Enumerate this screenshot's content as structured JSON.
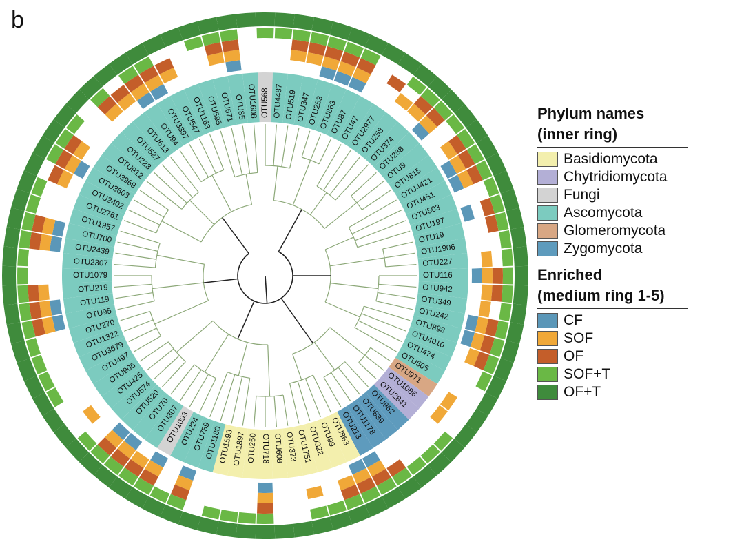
{
  "panel_label": "b",
  "legend": {
    "phylum_title_line1": "Phylum names",
    "phylum_title_line2": "(inner ring)",
    "enriched_title_line1": "Enriched",
    "enriched_title_line2": "(medium ring 1-5)",
    "phyla": [
      {
        "name": "Basidiomycota",
        "color": "#f3efad"
      },
      {
        "name": "Chytridiomycota",
        "color": "#b3afd6"
      },
      {
        "name": "Fungi",
        "color": "#d3d3d3"
      },
      {
        "name": "Ascomycota",
        "color": "#7ccbbf"
      },
      {
        "name": "Glomeromycota",
        "color": "#d8a784"
      },
      {
        "name": "Zygomycota",
        "color": "#5e9bbd"
      }
    ],
    "enriched": [
      {
        "name": "CF",
        "color": "#5b97b8"
      },
      {
        "name": "SOF",
        "color": "#f0a838"
      },
      {
        "name": "OF",
        "color": "#c45e2a"
      },
      {
        "name": "SOF+T",
        "color": "#6ab845"
      },
      {
        "name": "OF+T",
        "color": "#3f8b3c"
      }
    ]
  },
  "otus": [
    {
      "name": "OTU568",
      "phylum": "Fungi",
      "rings": [
        0,
        0,
        0,
        1,
        1
      ]
    },
    {
      "name": "OTU4487",
      "phylum": "Ascomycota",
      "rings": [
        0,
        0,
        0,
        1,
        1
      ]
    },
    {
      "name": "OTU519",
      "phylum": "Ascomycota",
      "rings": [
        0,
        1,
        1,
        1,
        1
      ]
    },
    {
      "name": "OTU347",
      "phylum": "Ascomycota",
      "rings": [
        0,
        1,
        1,
        1,
        1
      ]
    },
    {
      "name": "OTU253",
      "phylum": "Ascomycota",
      "rings": [
        1,
        1,
        1,
        1,
        1
      ]
    },
    {
      "name": "OTU863",
      "phylum": "Ascomycota",
      "rings": [
        1,
        1,
        1,
        1,
        1
      ]
    },
    {
      "name": "OTU87",
      "phylum": "Ascomycota",
      "rings": [
        1,
        1,
        1,
        1,
        1
      ]
    },
    {
      "name": "OTU47",
      "phylum": "Ascomycota",
      "rings": [
        0,
        0,
        0,
        0,
        1
      ]
    },
    {
      "name": "OTU2977",
      "phylum": "Ascomycota",
      "rings": [
        0,
        0,
        1,
        0,
        1
      ]
    },
    {
      "name": "OTU258",
      "phylum": "Ascomycota",
      "rings": [
        0,
        1,
        0,
        1,
        1
      ]
    },
    {
      "name": "OTU374",
      "phylum": "Ascomycota",
      "rings": [
        0,
        1,
        1,
        1,
        1
      ]
    },
    {
      "name": "OTU288",
      "phylum": "Ascomycota",
      "rings": [
        1,
        1,
        1,
        1,
        1
      ]
    },
    {
      "name": "OTU9",
      "phylum": "Ascomycota",
      "rings": [
        0,
        0,
        0,
        1,
        1
      ]
    },
    {
      "name": "OTU815",
      "phylum": "Ascomycota",
      "rings": [
        0,
        1,
        1,
        1,
        1
      ]
    },
    {
      "name": "OTU4421",
      "phylum": "Ascomycota",
      "rings": [
        1,
        1,
        1,
        1,
        1
      ]
    },
    {
      "name": "OTU451",
      "phylum": "Ascomycota",
      "rings": [
        1,
        1,
        1,
        1,
        1
      ]
    },
    {
      "name": "OTU503",
      "phylum": "Ascomycota",
      "rings": [
        0,
        0,
        0,
        1,
        1
      ]
    },
    {
      "name": "OTU197",
      "phylum": "Ascomycota",
      "rings": [
        1,
        0,
        1,
        1,
        1
      ]
    },
    {
      "name": "OTU19",
      "phylum": "Ascomycota",
      "rings": [
        0,
        0,
        1,
        1,
        1
      ]
    },
    {
      "name": "OTU1906",
      "phylum": "Ascomycota",
      "rings": [
        0,
        0,
        0,
        1,
        1
      ]
    },
    {
      "name": "OTU227",
      "phylum": "Ascomycota",
      "rings": [
        0,
        1,
        0,
        1,
        1
      ]
    },
    {
      "name": "OTU116",
      "phylum": "Ascomycota",
      "rings": [
        1,
        1,
        1,
        1,
        1
      ]
    },
    {
      "name": "OTU942",
      "phylum": "Ascomycota",
      "rings": [
        0,
        1,
        1,
        1,
        1
      ]
    },
    {
      "name": "OTU349",
      "phylum": "Ascomycota",
      "rings": [
        0,
        1,
        0,
        1,
        1
      ]
    },
    {
      "name": "OTU242",
      "phylum": "Ascomycota",
      "rings": [
        1,
        1,
        1,
        1,
        1
      ]
    },
    {
      "name": "OTU898",
      "phylum": "Ascomycota",
      "rings": [
        1,
        1,
        1,
        1,
        1
      ]
    },
    {
      "name": "OTU4010",
      "phylum": "Ascomycota",
      "rings": [
        0,
        1,
        1,
        1,
        1
      ]
    },
    {
      "name": "OTU474",
      "phylum": "Ascomycota",
      "rings": [
        0,
        0,
        0,
        1,
        1
      ]
    },
    {
      "name": "OTU505",
      "phylum": "Ascomycota",
      "rings": [
        0,
        0,
        0,
        0,
        1
      ]
    },
    {
      "name": "OTU971",
      "phylum": "Glomeromycota",
      "rings": [
        0,
        1,
        0,
        0,
        1
      ]
    },
    {
      "name": "OTU1086",
      "phylum": "Chytridiomycota",
      "rings": [
        0,
        1,
        0,
        0,
        1
      ]
    },
    {
      "name": "OTU2841",
      "phylum": "Chytridiomycota",
      "rings": [
        0,
        0,
        0,
        1,
        1
      ]
    },
    {
      "name": "OTU962",
      "phylum": "Zygomycota",
      "rings": [
        0,
        0,
        0,
        1,
        1
      ]
    },
    {
      "name": "OTU839",
      "phylum": "Zygomycota",
      "rings": [
        0,
        0,
        0,
        1,
        1
      ]
    },
    {
      "name": "OTU1178",
      "phylum": "Zygomycota",
      "rings": [
        0,
        0,
        1,
        1,
        1
      ]
    },
    {
      "name": "OTU213",
      "phylum": "Zygomycota",
      "rings": [
        1,
        1,
        1,
        1,
        1
      ]
    },
    {
      "name": "OTU863",
      "phylum": "Basidiomycota",
      "rings": [
        1,
        1,
        1,
        1,
        1
      ]
    },
    {
      "name": "OTU99",
      "phylum": "Basidiomycota",
      "rings": [
        0,
        1,
        1,
        1,
        1
      ]
    },
    {
      "name": "OTU322",
      "phylum": "Basidiomycota",
      "rings": [
        0,
        0,
        0,
        1,
        1
      ]
    },
    {
      "name": "OTU1751",
      "phylum": "Basidiomycota",
      "rings": [
        0,
        1,
        0,
        1,
        1
      ]
    },
    {
      "name": "OTU373",
      "phylum": "Basidiomycota",
      "rings": [
        0,
        0,
        0,
        0,
        1
      ]
    },
    {
      "name": "OTU608",
      "phylum": "Basidiomycota",
      "rings": [
        0,
        0,
        0,
        0,
        1
      ]
    },
    {
      "name": "OTU718",
      "phylum": "Basidiomycota",
      "rings": [
        1,
        1,
        1,
        1,
        1
      ]
    },
    {
      "name": "OTU250",
      "phylum": "Basidiomycota",
      "rings": [
        0,
        0,
        0,
        1,
        1
      ]
    },
    {
      "name": "OTU1897",
      "phylum": "Basidiomycota",
      "rings": [
        0,
        0,
        0,
        1,
        1
      ]
    },
    {
      "name": "OTU1593",
      "phylum": "Basidiomycota",
      "rings": [
        0,
        0,
        0,
        1,
        1
      ]
    },
    {
      "name": "OTU1180",
      "phylum": "Ascomycota",
      "rings": [
        0,
        0,
        0,
        0,
        1
      ]
    },
    {
      "name": "OTU759",
      "phylum": "Ascomycota",
      "rings": [
        1,
        1,
        1,
        1,
        1
      ]
    },
    {
      "name": "OTU224",
      "phylum": "Ascomycota",
      "rings": [
        0,
        0,
        0,
        1,
        1
      ]
    },
    {
      "name": "OTU1093",
      "phylum": "Fungi",
      "rings": [
        1,
        1,
        1,
        1,
        1
      ]
    },
    {
      "name": "OTU307",
      "phylum": "Ascomycota",
      "rings": [
        0,
        1,
        1,
        1,
        1
      ]
    },
    {
      "name": "OTU70",
      "phylum": "Ascomycota",
      "rings": [
        1,
        1,
        1,
        1,
        1
      ]
    },
    {
      "name": "OTU520",
      "phylum": "Ascomycota",
      "rings": [
        1,
        1,
        1,
        1,
        1
      ]
    },
    {
      "name": "OTU574",
      "phylum": "Ascomycota",
      "rings": [
        0,
        0,
        0,
        1,
        1
      ]
    },
    {
      "name": "OTU425",
      "phylum": "Ascomycota",
      "rings": [
        0,
        1,
        0,
        0,
        1
      ]
    },
    {
      "name": "OTU906",
      "phylum": "Ascomycota",
      "rings": [
        0,
        0,
        0,
        0,
        1
      ]
    },
    {
      "name": "OTU497",
      "phylum": "Ascomycota",
      "rings": [
        0,
        0,
        0,
        1,
        1
      ]
    },
    {
      "name": "OTU3679",
      "phylum": "Ascomycota",
      "rings": [
        0,
        0,
        0,
        1,
        1
      ]
    },
    {
      "name": "OTU1322",
      "phylum": "Ascomycota",
      "rings": [
        0,
        0,
        0,
        1,
        1
      ]
    },
    {
      "name": "OTU270",
      "phylum": "Ascomycota",
      "rings": [
        0,
        0,
        0,
        1,
        1
      ]
    },
    {
      "name": "OTU95",
      "phylum": "Ascomycota",
      "rings": [
        1,
        1,
        1,
        1,
        1
      ]
    },
    {
      "name": "OTU119",
      "phylum": "Ascomycota",
      "rings": [
        1,
        1,
        1,
        1,
        1
      ]
    },
    {
      "name": "OTU219",
      "phylum": "Ascomycota",
      "rings": [
        0,
        1,
        1,
        1,
        1
      ]
    },
    {
      "name": "OTU1079",
      "phylum": "Ascomycota",
      "rings": [
        0,
        0,
        0,
        1,
        1
      ]
    },
    {
      "name": "OTU2307",
      "phylum": "Ascomycota",
      "rings": [
        0,
        0,
        0,
        1,
        1
      ]
    },
    {
      "name": "OTU2439",
      "phylum": "Ascomycota",
      "rings": [
        1,
        1,
        1,
        1,
        1
      ]
    },
    {
      "name": "OTU700",
      "phylum": "Ascomycota",
      "rings": [
        1,
        1,
        1,
        1,
        1
      ]
    },
    {
      "name": "OTU1957",
      "phylum": "Ascomycota",
      "rings": [
        0,
        0,
        0,
        1,
        1
      ]
    },
    {
      "name": "OTU2761",
      "phylum": "Ascomycota",
      "rings": [
        0,
        0,
        0,
        1,
        1
      ]
    },
    {
      "name": "OTU2402",
      "phylum": "Ascomycota",
      "rings": [
        0,
        1,
        1,
        0,
        1
      ]
    },
    {
      "name": "OTU3603",
      "phylum": "Ascomycota",
      "rings": [
        1,
        1,
        1,
        1,
        1
      ]
    },
    {
      "name": "OTU3969",
      "phylum": "Ascomycota",
      "rings": [
        0,
        1,
        1,
        1,
        1
      ]
    },
    {
      "name": "OTU912",
      "phylum": "Ascomycota",
      "rings": [
        0,
        0,
        0,
        1,
        1
      ]
    },
    {
      "name": "OTU223",
      "phylum": "Ascomycota",
      "rings": [
        0,
        0,
        0,
        0,
        1
      ]
    },
    {
      "name": "OTU527",
      "phylum": "Ascomycota",
      "rings": [
        0,
        1,
        1,
        1,
        1
      ]
    },
    {
      "name": "OTU613",
      "phylum": "Ascomycota",
      "rings": [
        0,
        1,
        1,
        0,
        1
      ]
    },
    {
      "name": "OTU94",
      "phylum": "Ascomycota",
      "rings": [
        1,
        1,
        1,
        1,
        1
      ]
    },
    {
      "name": "OTU3397",
      "phylum": "Ascomycota",
      "rings": [
        1,
        1,
        1,
        1,
        1
      ]
    },
    {
      "name": "OTU547",
      "phylum": "Ascomycota",
      "rings": [
        0,
        1,
        1,
        0,
        1
      ]
    },
    {
      "name": "OTU1163",
      "phylum": "Ascomycota",
      "rings": [
        0,
        0,
        0,
        0,
        1
      ]
    },
    {
      "name": "OTU595",
      "phylum": "Ascomycota",
      "rings": [
        0,
        0,
        0,
        1,
        1
      ]
    },
    {
      "name": "OTU671",
      "phylum": "Ascomycota",
      "rings": [
        0,
        1,
        1,
        1,
        1
      ]
    },
    {
      "name": "OTU85",
      "phylum": "Ascomycota",
      "rings": [
        1,
        1,
        1,
        1,
        1
      ]
    },
    {
      "name": "OTU1608",
      "phylum": "Ascomycota",
      "rings": [
        0,
        0,
        0,
        0,
        1
      ]
    }
  ]
}
